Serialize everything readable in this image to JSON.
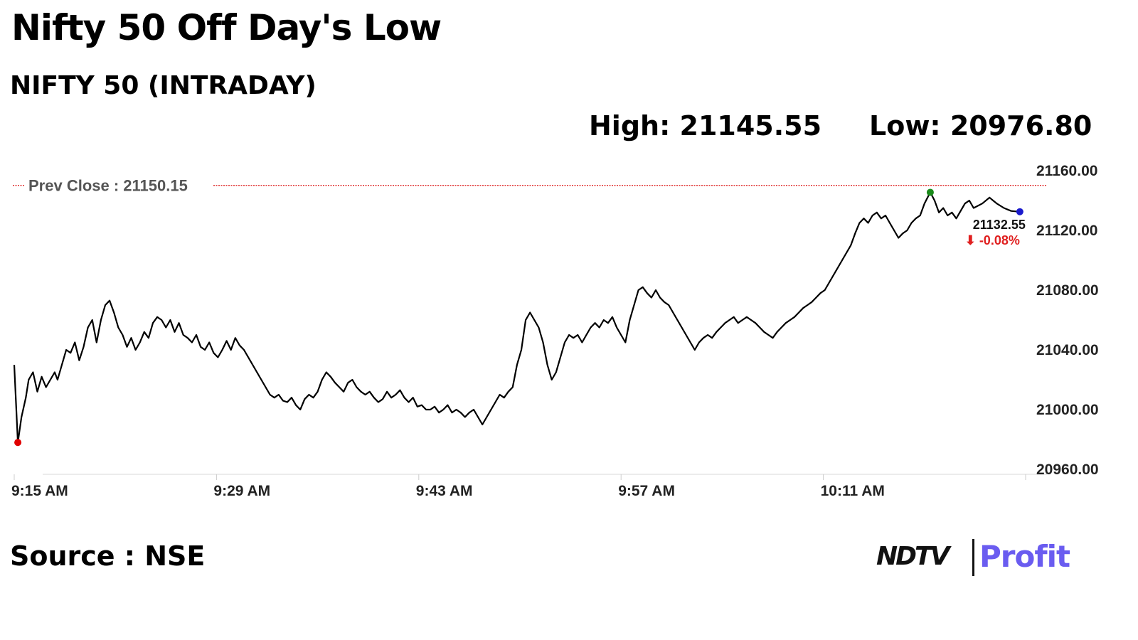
{
  "header": {
    "title": "Nifty 50 Off Day's Low",
    "subtitle": "NIFTY 50 (INTRADAY)",
    "high": "High: 21145.55",
    "low": "Low: 20976.80"
  },
  "footer": {
    "source": "Source : NSE",
    "brand_left": "NDTV",
    "brand_right": "Profit"
  },
  "colors": {
    "line": "#000000",
    "prev_close": "#e03030",
    "low_marker": "#e00000",
    "high_marker": "#1a8a1a",
    "last_marker": "#1a1acc",
    "change": "#e02020",
    "brand_profit": "#6a5cf0"
  },
  "chart_data": {
    "type": "line",
    "title": "NIFTY 50 (INTRADAY)",
    "x_ticks": [
      "9:15 AM",
      "9:29 AM",
      "9:43 AM",
      "9:57 AM",
      "10:11 AM"
    ],
    "y_ticks": [
      "21160.00",
      "21120.00",
      "21080.00",
      "21040.00",
      "21000.00",
      "20960.00"
    ],
    "ylim": [
      20960,
      21160
    ],
    "x_unit": "minutes after 9:15 AM",
    "xlim": [
      0,
      70
    ],
    "prev_close": 21150.15,
    "prev_close_label": "Prev Close : 21150.15",
    "last_value_label": "21132.55",
    "change_label": "⬇ -0.08%",
    "markers": {
      "low": {
        "x": 0.25,
        "y": 20978
      },
      "high": {
        "x": 63.4,
        "y": 21145.5
      },
      "last": {
        "x": 69.6,
        "y": 21132.5
      }
    },
    "series": [
      {
        "points": [
          [
            0.0,
            21030
          ],
          [
            0.25,
            20978
          ],
          [
            0.5,
            20995
          ],
          [
            0.8,
            21008
          ],
          [
            1.0,
            21020
          ],
          [
            1.3,
            21025
          ],
          [
            1.6,
            21012
          ],
          [
            1.9,
            21022
          ],
          [
            2.2,
            21015
          ],
          [
            2.5,
            21020
          ],
          [
            2.8,
            21025
          ],
          [
            3.0,
            21020
          ],
          [
            3.3,
            21030
          ],
          [
            3.6,
            21040
          ],
          [
            3.9,
            21038
          ],
          [
            4.2,
            21045
          ],
          [
            4.5,
            21033
          ],
          [
            4.8,
            21042
          ],
          [
            5.1,
            21055
          ],
          [
            5.4,
            21060
          ],
          [
            5.7,
            21045
          ],
          [
            6.0,
            21060
          ],
          [
            6.3,
            21070
          ],
          [
            6.6,
            21073
          ],
          [
            6.9,
            21065
          ],
          [
            7.2,
            21055
          ],
          [
            7.5,
            21050
          ],
          [
            7.8,
            21042
          ],
          [
            8.1,
            21048
          ],
          [
            8.4,
            21040
          ],
          [
            8.7,
            21045
          ],
          [
            9.0,
            21052
          ],
          [
            9.3,
            21048
          ],
          [
            9.6,
            21058
          ],
          [
            9.9,
            21062
          ],
          [
            10.2,
            21060
          ],
          [
            10.5,
            21055
          ],
          [
            10.8,
            21060
          ],
          [
            11.1,
            21052
          ],
          [
            11.4,
            21058
          ],
          [
            11.7,
            21050
          ],
          [
            12.0,
            21048
          ],
          [
            12.3,
            21045
          ],
          [
            12.6,
            21050
          ],
          [
            12.9,
            21042
          ],
          [
            13.2,
            21040
          ],
          [
            13.5,
            21045
          ],
          [
            13.8,
            21038
          ],
          [
            14.1,
            21035
          ],
          [
            14.4,
            21040
          ],
          [
            14.7,
            21046
          ],
          [
            15.0,
            21040
          ],
          [
            15.3,
            21048
          ],
          [
            15.6,
            21043
          ],
          [
            15.9,
            21040
          ],
          [
            16.2,
            21035
          ],
          [
            16.5,
            21030
          ],
          [
            16.8,
            21025
          ],
          [
            17.1,
            21020
          ],
          [
            17.4,
            21015
          ],
          [
            17.7,
            21010
          ],
          [
            18.0,
            21008
          ],
          [
            18.3,
            21010
          ],
          [
            18.6,
            21006
          ],
          [
            18.9,
            21005
          ],
          [
            19.2,
            21008
          ],
          [
            19.5,
            21003
          ],
          [
            19.8,
            21000
          ],
          [
            20.1,
            21007
          ],
          [
            20.4,
            21010
          ],
          [
            20.7,
            21008
          ],
          [
            21.0,
            21012
          ],
          [
            21.3,
            21020
          ],
          [
            21.6,
            21025
          ],
          [
            21.9,
            21022
          ],
          [
            22.2,
            21018
          ],
          [
            22.5,
            21015
          ],
          [
            22.8,
            21012
          ],
          [
            23.1,
            21018
          ],
          [
            23.4,
            21020
          ],
          [
            23.7,
            21015
          ],
          [
            24.0,
            21012
          ],
          [
            24.3,
            21010
          ],
          [
            24.6,
            21012
          ],
          [
            24.9,
            21008
          ],
          [
            25.2,
            21005
          ],
          [
            25.5,
            21007
          ],
          [
            25.8,
            21012
          ],
          [
            26.1,
            21008
          ],
          [
            26.4,
            21010
          ],
          [
            26.7,
            21013
          ],
          [
            27.0,
            21008
          ],
          [
            27.3,
            21005
          ],
          [
            27.6,
            21008
          ],
          [
            27.9,
            21002
          ],
          [
            28.2,
            21003
          ],
          [
            28.5,
            21000
          ],
          [
            28.8,
            21000
          ],
          [
            29.1,
            21002
          ],
          [
            29.4,
            20998
          ],
          [
            29.7,
            21000
          ],
          [
            30.0,
            21003
          ],
          [
            30.3,
            20998
          ],
          [
            30.6,
            21000
          ],
          [
            30.9,
            20998
          ],
          [
            31.2,
            20995
          ],
          [
            31.5,
            20998
          ],
          [
            31.8,
            21000
          ],
          [
            32.1,
            20995
          ],
          [
            32.4,
            20990
          ],
          [
            32.7,
            20995
          ],
          [
            33.0,
            21000
          ],
          [
            33.3,
            21005
          ],
          [
            33.6,
            21010
          ],
          [
            33.9,
            21008
          ],
          [
            34.2,
            21012
          ],
          [
            34.5,
            21015
          ],
          [
            34.8,
            21030
          ],
          [
            35.1,
            21040
          ],
          [
            35.4,
            21060
          ],
          [
            35.7,
            21065
          ],
          [
            36.0,
            21060
          ],
          [
            36.3,
            21055
          ],
          [
            36.6,
            21045
          ],
          [
            36.9,
            21030
          ],
          [
            37.2,
            21020
          ],
          [
            37.5,
            21025
          ],
          [
            37.8,
            21035
          ],
          [
            38.1,
            21045
          ],
          [
            38.4,
            21050
          ],
          [
            38.7,
            21048
          ],
          [
            39.0,
            21050
          ],
          [
            39.3,
            21045
          ],
          [
            39.6,
            21050
          ],
          [
            39.9,
            21055
          ],
          [
            40.2,
            21058
          ],
          [
            40.5,
            21055
          ],
          [
            40.8,
            21060
          ],
          [
            41.1,
            21058
          ],
          [
            41.4,
            21062
          ],
          [
            41.7,
            21055
          ],
          [
            42.0,
            21050
          ],
          [
            42.3,
            21045
          ],
          [
            42.6,
            21060
          ],
          [
            42.9,
            21070
          ],
          [
            43.2,
            21080
          ],
          [
            43.5,
            21082
          ],
          [
            43.8,
            21078
          ],
          [
            44.1,
            21075
          ],
          [
            44.4,
            21080
          ],
          [
            44.7,
            21075
          ],
          [
            45.0,
            21072
          ],
          [
            45.3,
            21070
          ],
          [
            45.6,
            21065
          ],
          [
            45.9,
            21060
          ],
          [
            46.2,
            21055
          ],
          [
            46.5,
            21050
          ],
          [
            46.8,
            21045
          ],
          [
            47.1,
            21040
          ],
          [
            47.4,
            21045
          ],
          [
            47.7,
            21048
          ],
          [
            48.0,
            21050
          ],
          [
            48.3,
            21048
          ],
          [
            48.6,
            21052
          ],
          [
            48.9,
            21055
          ],
          [
            49.2,
            21058
          ],
          [
            49.5,
            21060
          ],
          [
            49.8,
            21062
          ],
          [
            50.1,
            21058
          ],
          [
            50.4,
            21060
          ],
          [
            50.7,
            21062
          ],
          [
            51.0,
            21060
          ],
          [
            51.3,
            21058
          ],
          [
            51.6,
            21055
          ],
          [
            51.9,
            21052
          ],
          [
            52.2,
            21050
          ],
          [
            52.5,
            21048
          ],
          [
            52.8,
            21052
          ],
          [
            53.1,
            21055
          ],
          [
            53.4,
            21058
          ],
          [
            53.7,
            21060
          ],
          [
            54.0,
            21062
          ],
          [
            54.3,
            21065
          ],
          [
            54.6,
            21068
          ],
          [
            54.9,
            21070
          ],
          [
            55.2,
            21072
          ],
          [
            55.5,
            21075
          ],
          [
            55.8,
            21078
          ],
          [
            56.1,
            21080
          ],
          [
            56.4,
            21085
          ],
          [
            56.7,
            21090
          ],
          [
            57.0,
            21095
          ],
          [
            57.3,
            21100
          ],
          [
            57.6,
            21105
          ],
          [
            57.9,
            21110
          ],
          [
            58.2,
            21118
          ],
          [
            58.5,
            21125
          ],
          [
            58.8,
            21128
          ],
          [
            59.1,
            21125
          ],
          [
            59.4,
            21130
          ],
          [
            59.7,
            21132
          ],
          [
            60.0,
            21128
          ],
          [
            60.3,
            21130
          ],
          [
            60.6,
            21125
          ],
          [
            60.9,
            21120
          ],
          [
            61.2,
            21115
          ],
          [
            61.5,
            21118
          ],
          [
            61.8,
            21120
          ],
          [
            62.1,
            21125
          ],
          [
            62.4,
            21128
          ],
          [
            62.7,
            21130
          ],
          [
            63.0,
            21138
          ],
          [
            63.4,
            21145.5
          ],
          [
            63.7,
            21140
          ],
          [
            64.0,
            21132
          ],
          [
            64.3,
            21135
          ],
          [
            64.6,
            21130
          ],
          [
            64.9,
            21132
          ],
          [
            65.2,
            21128
          ],
          [
            65.5,
            21133
          ],
          [
            65.8,
            21138
          ],
          [
            66.1,
            21140
          ],
          [
            66.4,
            21135
          ],
          [
            67.0,
            21138
          ],
          [
            67.5,
            21142
          ],
          [
            68.0,
            21138
          ],
          [
            68.5,
            21135
          ],
          [
            69.0,
            21133
          ],
          [
            69.6,
            21132.5
          ]
        ]
      }
    ]
  }
}
